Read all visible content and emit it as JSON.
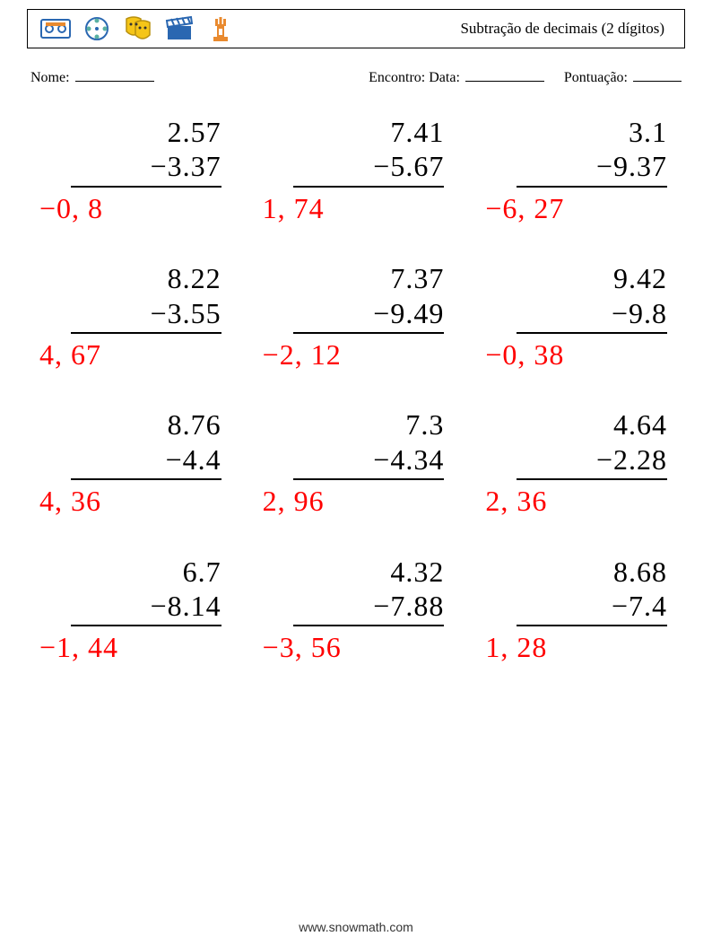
{
  "header": {
    "title": "Subtração de decimais (2 dígitos)",
    "icons": [
      "cassette-icon",
      "reel-icon",
      "masks-icon",
      "clapper-icon",
      "tower-icon"
    ]
  },
  "labels": {
    "name": "Nome:",
    "date": "Encontro: Data:",
    "score": "Pontuação:"
  },
  "worksheet": {
    "layout": {
      "rows": 4,
      "cols": 3
    },
    "typography": {
      "problem_fontsize_pt": 24,
      "answer_color": "#ff0000",
      "text_color": "#000000",
      "background": "#ffffff"
    },
    "problems": [
      {
        "minuend": "2.57",
        "subtrahend": "3.37",
        "op": "−",
        "answer": "−0, 8"
      },
      {
        "minuend": "7.41",
        "subtrahend": "5.67",
        "op": "−",
        "answer": "1, 74"
      },
      {
        "minuend": "3.1",
        "subtrahend": "9.37",
        "op": "−",
        "answer": "−6, 27"
      },
      {
        "minuend": "8.22",
        "subtrahend": "3.55",
        "op": "−",
        "answer": "4, 67"
      },
      {
        "minuend": "7.37",
        "subtrahend": "9.49",
        "op": "−",
        "answer": "−2, 12"
      },
      {
        "minuend": "9.42",
        "subtrahend": "9.8",
        "op": "−",
        "answer": "−0, 38"
      },
      {
        "minuend": "8.76",
        "subtrahend": "4.4",
        "op": "−",
        "answer": "4, 36"
      },
      {
        "minuend": "7.3",
        "subtrahend": "4.34",
        "op": "−",
        "answer": "2, 96"
      },
      {
        "minuend": "4.64",
        "subtrahend": "2.28",
        "op": "−",
        "answer": "2, 36"
      },
      {
        "minuend": "6.7",
        "subtrahend": "8.14",
        "op": "−",
        "answer": "−1, 44"
      },
      {
        "minuend": "4.32",
        "subtrahend": "7.88",
        "op": "−",
        "answer": "−3, 56"
      },
      {
        "minuend": "8.68",
        "subtrahend": "7.4",
        "op": "−",
        "answer": "1, 28"
      }
    ]
  },
  "footer": {
    "text": "www.snowmath.com"
  },
  "colors": {
    "icon_blue": "#2a67b1",
    "icon_yellow": "#f5c518",
    "icon_orange": "#e98a2f",
    "icon_teal": "#59b0a2",
    "border": "#000000"
  }
}
